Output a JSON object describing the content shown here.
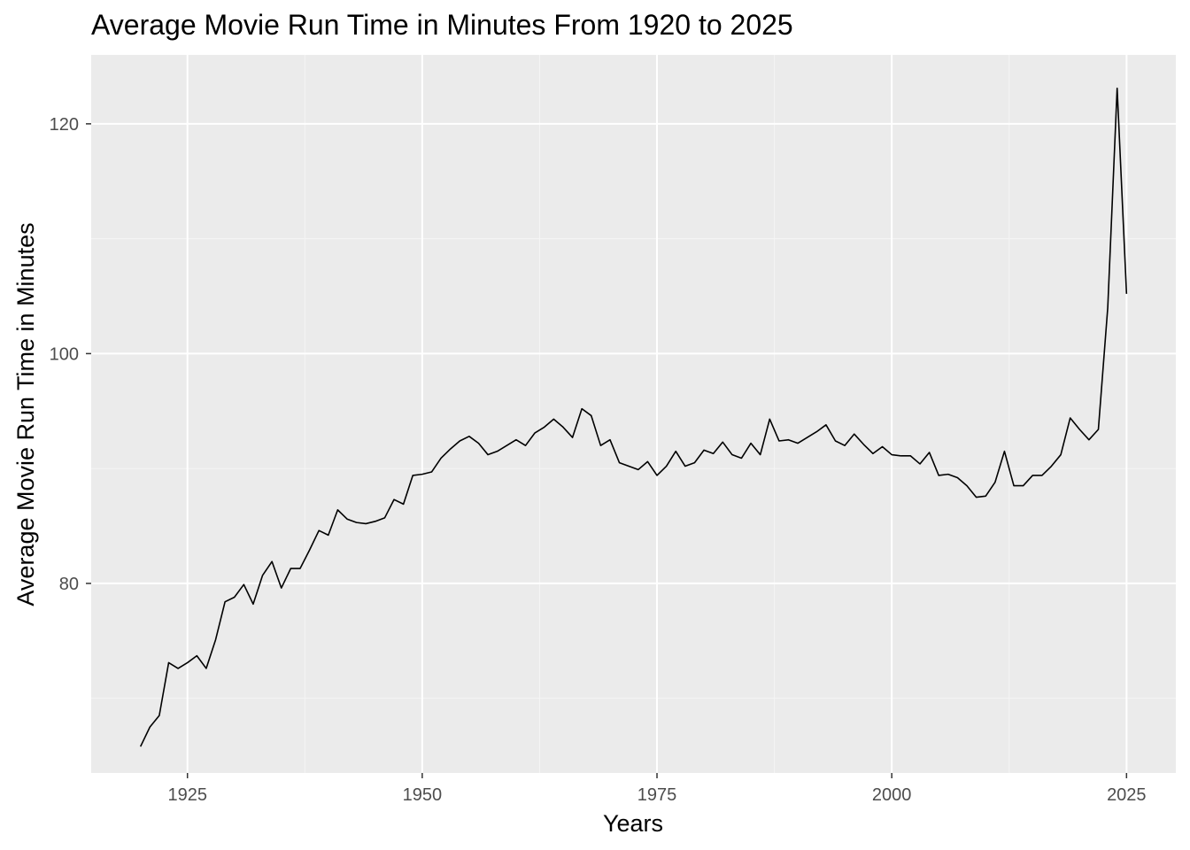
{
  "chart_data": {
    "type": "line",
    "title": "Average Movie Run Time in Minutes From 1920 to 2025",
    "xlabel": "Years",
    "ylabel": "Average Movie Run Time in Minutes",
    "xlim": [
      1914.75,
      2030.25
    ],
    "ylim": [
      63.5,
      126
    ],
    "x_ticks": [
      1925,
      1950,
      1975,
      2000,
      2025
    ],
    "y_ticks": [
      80,
      100,
      120
    ],
    "grid": true,
    "legend": "none",
    "colors": {
      "panel_background": "#ebebeb",
      "grid_major": "#ffffff",
      "grid_minor": "#f5f5f5",
      "line": "#000000",
      "tick_label": "#4d4d4d"
    },
    "series": [
      {
        "x": [
          1920,
          1921,
          1922,
          1923,
          1924,
          1925,
          1926,
          1927,
          1928,
          1929,
          1930,
          1931,
          1932,
          1933,
          1934,
          1935,
          1936,
          1937,
          1938,
          1939,
          1940,
          1941,
          1942,
          1943,
          1944,
          1945,
          1946,
          1947,
          1948,
          1949,
          1950,
          1951,
          1952,
          1953,
          1954,
          1955,
          1956,
          1957,
          1958,
          1959,
          1960,
          1961,
          1962,
          1963,
          1964,
          1965,
          1966,
          1967,
          1968,
          1969,
          1970,
          1971,
          1972,
          1973,
          1974,
          1975,
          1976,
          1977,
          1978,
          1979,
          1980,
          1981,
          1982,
          1983,
          1984,
          1985,
          1986,
          1987,
          1988,
          1989,
          1990,
          1991,
          1992,
          1993,
          1994,
          1995,
          1996,
          1997,
          1998,
          1999,
          2000,
          2001,
          2002,
          2003,
          2004,
          2005,
          2006,
          2007,
          2008,
          2009,
          2010,
          2011,
          2012,
          2013,
          2014,
          2015,
          2016,
          2017,
          2018,
          2019,
          2020,
          2021,
          2022,
          2023,
          2024,
          2025
        ],
        "values": [
          65.8,
          67.5,
          68.5,
          73.1,
          72.6,
          73.1,
          73.7,
          72.6,
          75.1,
          78.4,
          78.8,
          79.9,
          78.2,
          80.7,
          81.9,
          79.6,
          81.3,
          81.3,
          82.9,
          84.6,
          84.2,
          86.4,
          85.6,
          85.3,
          85.2,
          85.4,
          85.7,
          87.3,
          86.9,
          89.4,
          89.5,
          89.7,
          90.9,
          91.7,
          92.4,
          92.8,
          92.2,
          91.2,
          91.5,
          92.0,
          92.5,
          92.0,
          93.1,
          93.6,
          94.3,
          93.6,
          92.7,
          95.2,
          94.6,
          92.0,
          92.5,
          90.5,
          90.2,
          89.9,
          90.6,
          89.4,
          90.2,
          91.5,
          90.2,
          90.5,
          91.6,
          91.3,
          92.3,
          91.2,
          90.9,
          92.2,
          91.2,
          94.3,
          92.4,
          92.5,
          92.2,
          92.7,
          93.2,
          93.8,
          92.4,
          92.0,
          93.0,
          92.1,
          91.3,
          91.9,
          91.2,
          91.1,
          91.1,
          90.4,
          91.4,
          89.4,
          89.5,
          89.2,
          88.5,
          87.5,
          87.6,
          88.8,
          91.5,
          88.5,
          88.5,
          89.4,
          89.4,
          90.2,
          91.2,
          94.4,
          93.4,
          92.5,
          93.4,
          104.0,
          123.1,
          105.2
        ]
      }
    ]
  }
}
